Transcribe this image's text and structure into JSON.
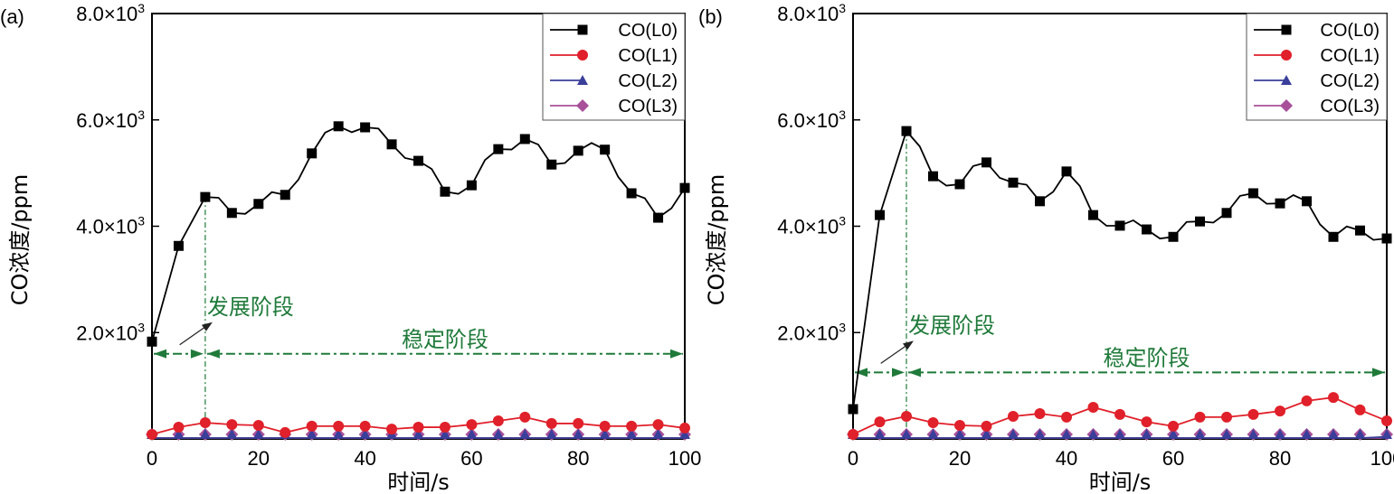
{
  "chart_data": [
    {
      "type": "line",
      "panel_label": "(a)",
      "title": "",
      "xlabel": "时间/s",
      "ylabel": "CO浓度/ppm",
      "xlim": [
        0,
        100
      ],
      "ylim": [
        0,
        8000
      ],
      "xticks": [
        0,
        20,
        40,
        60,
        80,
        100
      ],
      "xtick_labels": [
        "0",
        "20",
        "40",
        "60",
        "80",
        "100"
      ],
      "yticks": [
        2000,
        4000,
        6000,
        8000
      ],
      "ytick_labels": [
        "2.0×10³",
        "4.0×10³",
        "6.0×10³",
        "8.0×10³"
      ],
      "grid": false,
      "legend_position": "top-right",
      "x": [
        0,
        5,
        10,
        15,
        20,
        25,
        30,
        35,
        40,
        45,
        50,
        55,
        60,
        65,
        70,
        75,
        80,
        85,
        90,
        95,
        100
      ],
      "series": [
        {
          "name": "CO(L0)",
          "color": "#000000",
          "marker": "square",
          "values": [
            1830,
            3630,
            4550,
            4250,
            4420,
            4590,
            5370,
            5880,
            5860,
            5540,
            5230,
            4650,
            4770,
            5450,
            5640,
            5160,
            5420,
            5440,
            4620,
            4160,
            4720
          ]
        },
        {
          "name": "CO(L1)",
          "color": "#e0202a",
          "marker": "circle",
          "values": [
            85,
            220,
            305,
            270,
            255,
            120,
            240,
            240,
            240,
            185,
            220,
            220,
            270,
            340,
            410,
            290,
            290,
            240,
            240,
            270,
            205
          ]
        },
        {
          "name": "CO(L2)",
          "color": "#3a3f9a",
          "marker": "triangle",
          "values": [
            0,
            0,
            0,
            0,
            0,
            0,
            0,
            0,
            0,
            0,
            0,
            0,
            0,
            0,
            0,
            0,
            0,
            0,
            0,
            0,
            0
          ]
        },
        {
          "name": "CO(L3)",
          "color": "#a8509a",
          "marker": "diamond",
          "values": [
            0,
            0,
            0,
            0,
            0,
            0,
            0,
            0,
            0,
            0,
            0,
            0,
            0,
            0,
            0,
            0,
            0,
            0,
            0,
            0,
            0
          ]
        }
      ],
      "annotations": [
        {
          "text": "发展阶段",
          "range": [
            0,
            10
          ],
          "level": 1600
        },
        {
          "text": "稳定阶段",
          "range": [
            10,
            100
          ],
          "level": 1600
        }
      ],
      "divider_x": 10
    },
    {
      "type": "line",
      "panel_label": "(b)",
      "title": "",
      "xlabel": "时间/s",
      "ylabel": "CO浓度/ppm",
      "xlim": [
        0,
        100
      ],
      "ylim": [
        0,
        8000
      ],
      "xticks": [
        0,
        20,
        40,
        60,
        80,
        100
      ],
      "xtick_labels": [
        "0",
        "20",
        "40",
        "60",
        "80",
        "100"
      ],
      "yticks": [
        2000,
        4000,
        6000,
        8000
      ],
      "ytick_labels": [
        "2.0×10³",
        "4.0×10³",
        "6.0×10³",
        "8.0×10³"
      ],
      "grid": false,
      "legend_position": "top-right",
      "x": [
        0,
        5,
        10,
        15,
        20,
        25,
        30,
        35,
        40,
        45,
        50,
        55,
        60,
        65,
        70,
        75,
        80,
        85,
        90,
        95,
        100
      ],
      "series": [
        {
          "name": "CO(L0)",
          "color": "#000000",
          "marker": "square",
          "values": [
            560,
            4210,
            5790,
            4940,
            4790,
            5200,
            4820,
            4470,
            5030,
            4210,
            4010,
            3940,
            3800,
            4090,
            4250,
            4620,
            4430,
            4470,
            3800,
            3920,
            3770
          ]
        },
        {
          "name": "CO(L1)",
          "color": "#e0202a",
          "marker": "circle",
          "values": [
            85,
            320,
            425,
            305,
            255,
            240,
            425,
            475,
            410,
            595,
            460,
            320,
            240,
            410,
            410,
            460,
            525,
            715,
            780,
            545,
            340
          ]
        },
        {
          "name": "CO(L2)",
          "color": "#3a3f9a",
          "marker": "triangle",
          "values": [
            0,
            0,
            0,
            0,
            0,
            0,
            0,
            0,
            0,
            0,
            0,
            0,
            0,
            0,
            0,
            0,
            0,
            0,
            0,
            10,
            40
          ]
        },
        {
          "name": "CO(L3)",
          "color": "#a8509a",
          "marker": "diamond",
          "values": [
            0,
            0,
            0,
            0,
            0,
            0,
            0,
            0,
            0,
            0,
            0,
            0,
            0,
            0,
            0,
            0,
            0,
            0,
            0,
            0,
            0
          ]
        }
      ],
      "annotations": [
        {
          "text": "发展阶段",
          "range": [
            0,
            10
          ],
          "level": 1250
        },
        {
          "text": "稳定阶段",
          "range": [
            10,
            100
          ],
          "level": 1250
        }
      ],
      "divider_x": 10
    }
  ]
}
